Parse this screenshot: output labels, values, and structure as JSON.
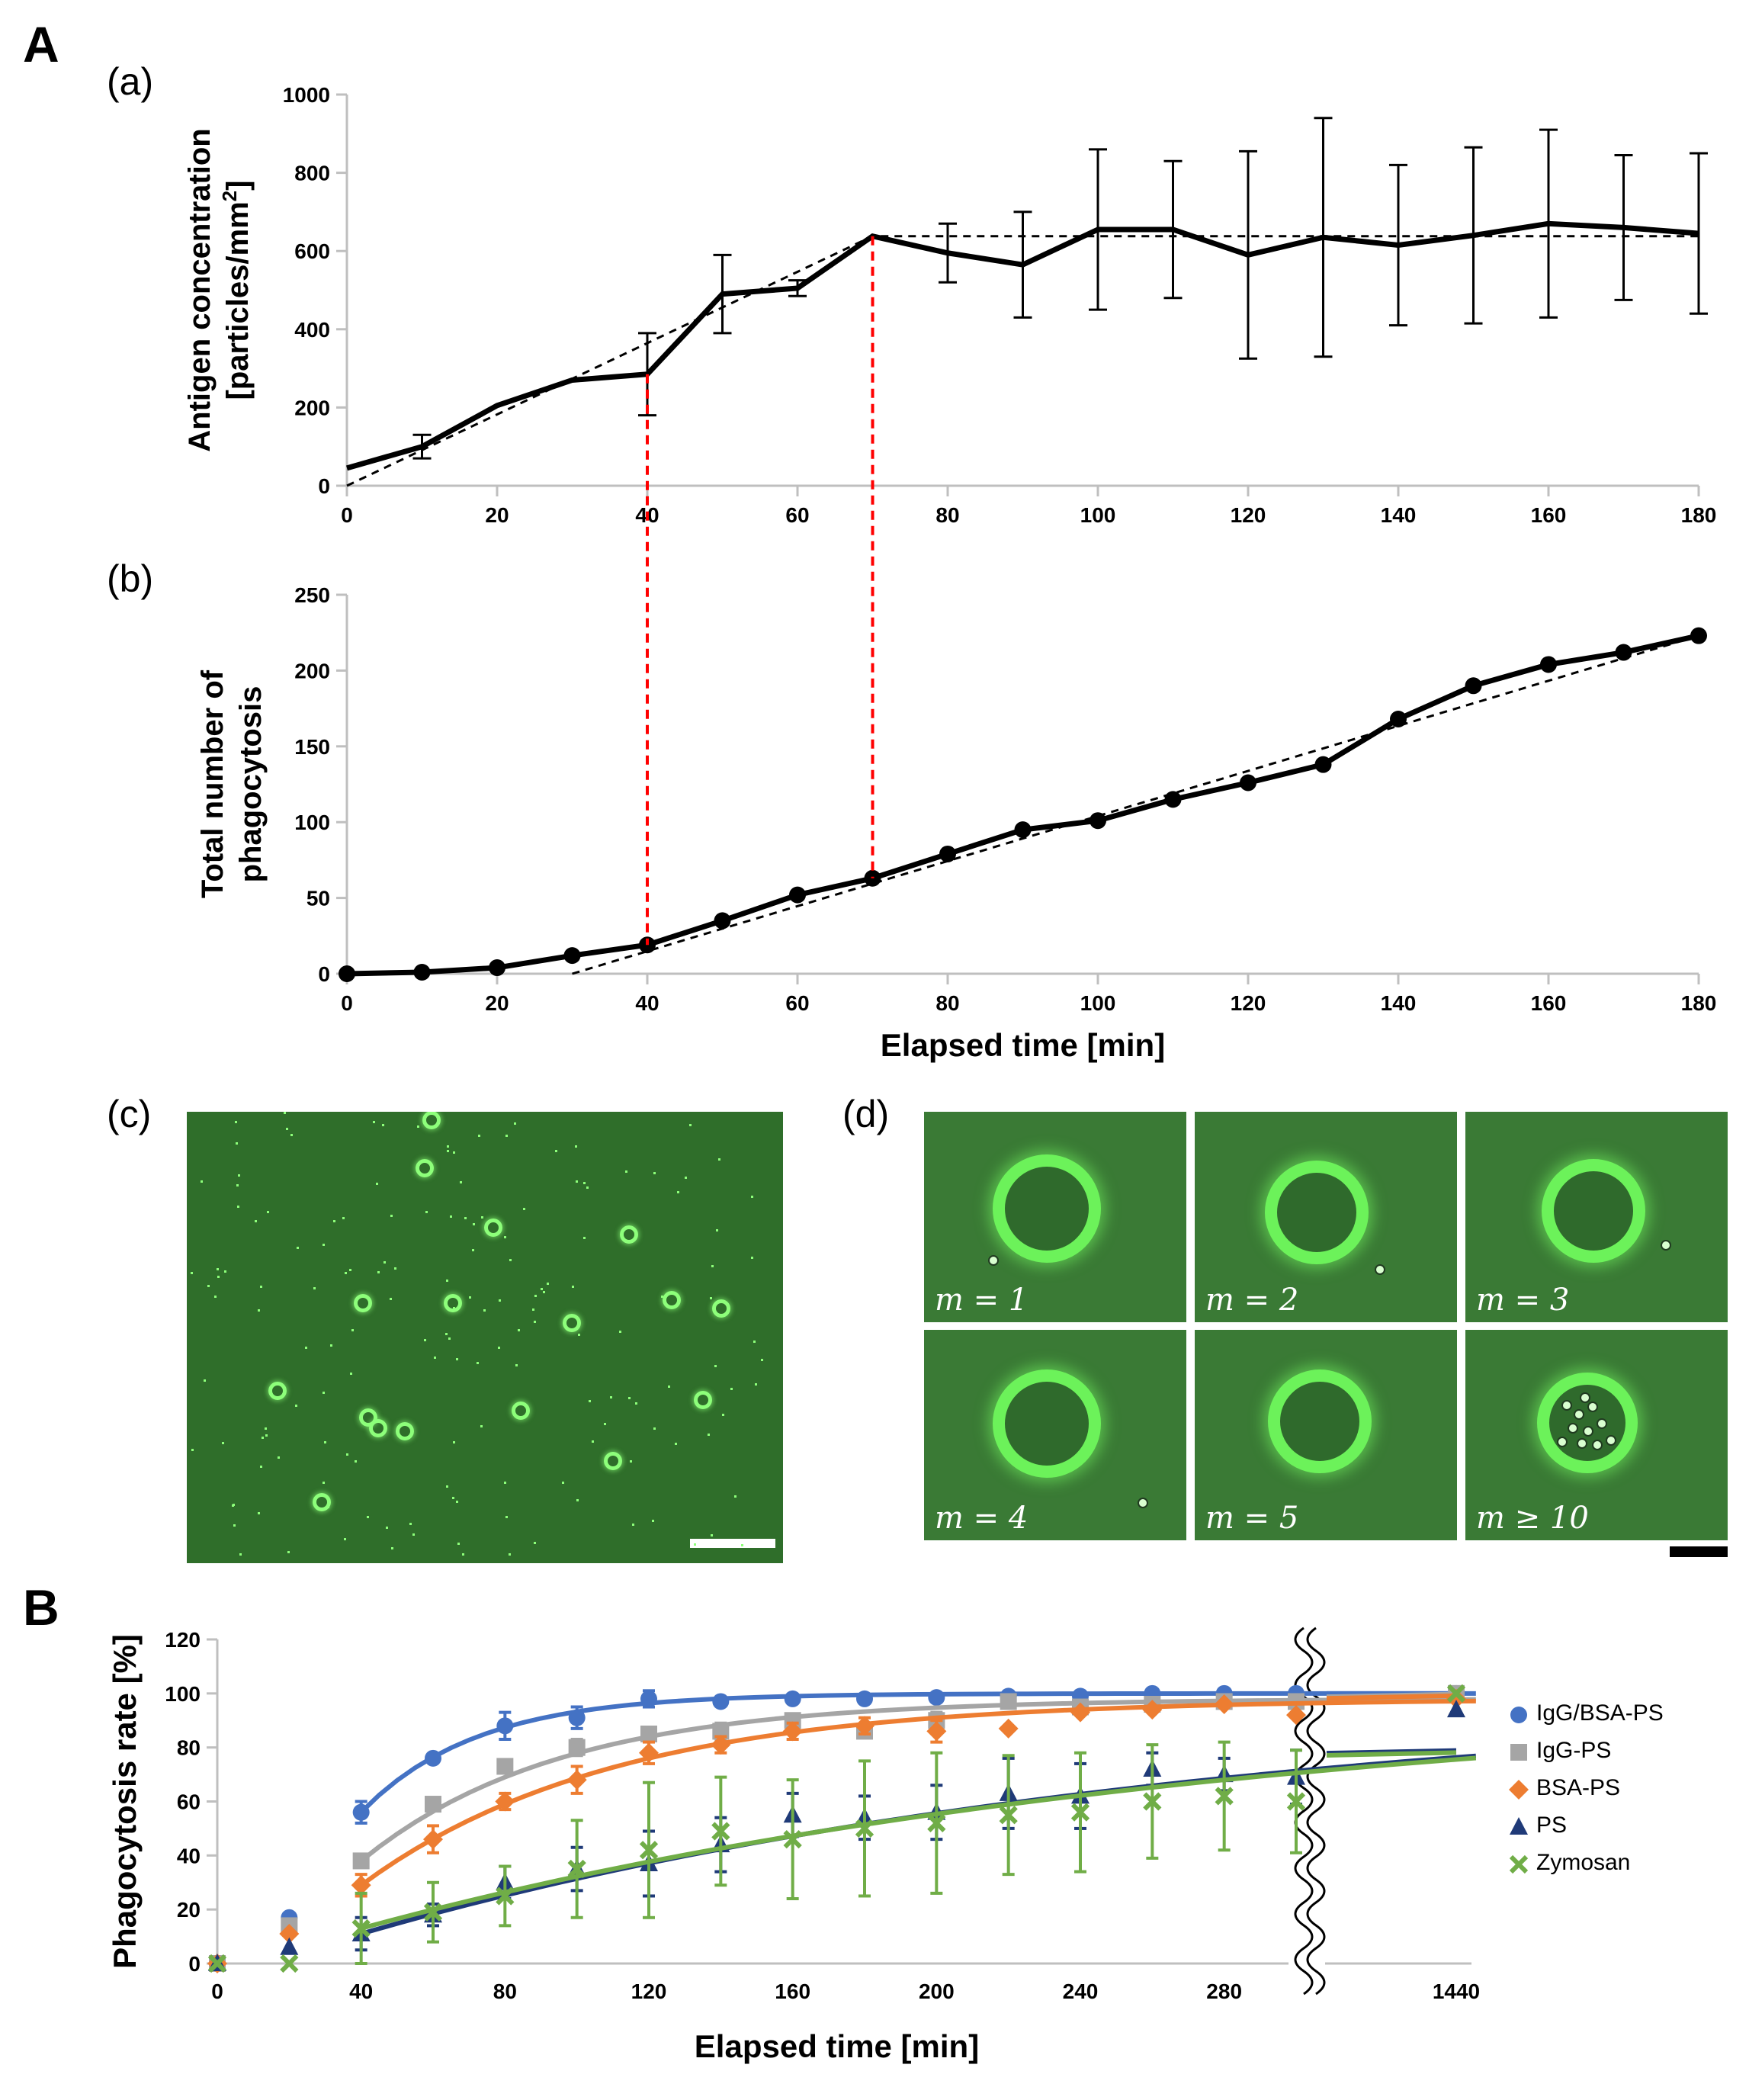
{
  "panel_labels": {
    "A": "A",
    "B": "B",
    "a": "(a)",
    "b": "(b)",
    "c": "(c)",
    "d": "(d)"
  },
  "colors": {
    "IgG/BSA-PS": "#4472c4",
    "IgG-PS": "#a5a5a5",
    "BSA-PS": "#ed7d31",
    "PS": "#1f3a78",
    "Zymosan": "#70ad47",
    "guide": "#ff0000"
  },
  "chart_data": [
    {
      "id": "a",
      "type": "line",
      "ylabel_line1": "Antigen concentration",
      "ylabel_line2": "[particles/mm",
      "ylabel_sup": "2",
      "ylabel_end": "]",
      "xlim": [
        0,
        180
      ],
      "ylim": [
        0,
        1000
      ],
      "xticks": [
        0,
        20,
        40,
        60,
        80,
        100,
        120,
        140,
        160,
        180
      ],
      "yticks": [
        0,
        200,
        400,
        600,
        800,
        1000
      ],
      "x": [
        0,
        10,
        20,
        30,
        40,
        50,
        60,
        70,
        80,
        90,
        100,
        110,
        120,
        130,
        140,
        150,
        160,
        170,
        180
      ],
      "y": [
        45,
        100,
        205,
        270,
        285,
        490,
        505,
        638,
        595,
        565,
        655,
        655,
        590,
        635,
        615,
        640,
        670,
        660,
        645
      ],
      "err": [
        0,
        30,
        0,
        0,
        105,
        100,
        20,
        0,
        75,
        135,
        205,
        175,
        265,
        305,
        205,
        225,
        240,
        185,
        205
      ],
      "fit": [
        [
          0,
          0
        ],
        [
          70,
          638
        ],
        [
          180,
          638
        ]
      ]
    },
    {
      "id": "b",
      "type": "line",
      "ylabel_line1": "Total number of",
      "ylabel_line2": "phagocytosis",
      "xlabel": "Elapsed time [min]",
      "xlim": [
        0,
        180
      ],
      "ylim": [
        0,
        250
      ],
      "xticks": [
        0,
        20,
        40,
        60,
        80,
        100,
        120,
        140,
        160,
        180
      ],
      "yticks": [
        0,
        50,
        100,
        150,
        200,
        250
      ],
      "x": [
        0,
        10,
        20,
        30,
        40,
        50,
        60,
        70,
        80,
        90,
        100,
        110,
        120,
        130,
        140,
        150,
        160,
        170,
        180
      ],
      "y": [
        0,
        1,
        4,
        12,
        19,
        35,
        52,
        63,
        79,
        95,
        101,
        115,
        126,
        138,
        168,
        190,
        204,
        212,
        223
      ],
      "fit": [
        [
          30,
          0
        ],
        [
          180,
          223
        ]
      ]
    },
    {
      "id": "B",
      "type": "scatter",
      "ylabel": "Phagocytosis rate [%]",
      "xlabel": "Elapsed time [min]",
      "ylim": [
        0,
        120
      ],
      "yticks": [
        0,
        20,
        40,
        60,
        80,
        100,
        120
      ],
      "xticks": [
        0,
        40,
        80,
        120,
        160,
        200,
        240,
        280
      ],
      "xtick_break": "1440",
      "series": [
        {
          "name": "IgG/BSA-PS",
          "marker": "circle",
          "x": [
            0,
            20,
            40,
            60,
            80,
            100,
            120,
            140,
            160,
            180,
            200,
            220,
            240,
            260,
            280,
            300,
            1440
          ],
          "y": [
            0,
            17,
            56,
            76,
            88,
            91,
            98,
            97,
            98,
            98,
            98.5,
            99,
            99,
            100,
            100,
            100,
            100
          ],
          "err": [
            0,
            0,
            4,
            0,
            5,
            4,
            3,
            0,
            0,
            0,
            0,
            0,
            0,
            0,
            0,
            0,
            0
          ],
          "fit_tau": 32,
          "fit_plateau": 100
        },
        {
          "name": "IgG-PS",
          "marker": "square",
          "x": [
            0,
            20,
            40,
            60,
            80,
            100,
            120,
            140,
            160,
            180,
            200,
            220,
            240,
            260,
            280,
            300,
            1440
          ],
          "y": [
            0,
            14,
            38,
            59,
            73,
            80,
            85,
            86,
            90,
            86,
            90,
            97,
            95,
            96,
            97,
            97,
            100
          ],
          "err": [
            0,
            0,
            0,
            0,
            0,
            3,
            0,
            3,
            0,
            2,
            3,
            0,
            0,
            0,
            0,
            0,
            0
          ],
          "fit_tau": 55,
          "fit_plateau": 98
        },
        {
          "name": "BSA-PS",
          "marker": "diamond",
          "x": [
            0,
            20,
            40,
            60,
            80,
            100,
            120,
            140,
            160,
            180,
            200,
            220,
            240,
            260,
            280,
            300,
            1440
          ],
          "y": [
            0,
            11,
            29,
            46,
            60,
            68,
            78,
            81,
            86,
            88,
            86,
            87,
            93,
            94,
            96,
            92,
            98
          ],
          "err": [
            0,
            0,
            4,
            5,
            3,
            5,
            4,
            3,
            3,
            3,
            4,
            0,
            0,
            0,
            0,
            0,
            0
          ],
          "fit_tau": 70,
          "fit_plateau": 98
        },
        {
          "name": "PS",
          "marker": "triangle",
          "x": [
            0,
            20,
            40,
            60,
            80,
            100,
            120,
            140,
            160,
            180,
            200,
            220,
            240,
            260,
            280,
            300,
            1440
          ],
          "y": [
            0,
            6,
            11,
            18,
            30,
            35,
            37,
            44,
            55,
            54,
            56,
            63,
            62,
            72,
            70,
            69,
            94
          ],
          "err": [
            0,
            0,
            6,
            4,
            6,
            8,
            12,
            10,
            8,
            8,
            10,
            13,
            12,
            6,
            6,
            10,
            0
          ],
          "fit_tau": 230,
          "fit_plateau": 100
        },
        {
          "name": "Zymosan",
          "marker": "cross",
          "x": [
            0,
            20,
            40,
            60,
            80,
            100,
            120,
            140,
            160,
            180,
            200,
            220,
            240,
            260,
            280,
            300,
            1440
          ],
          "y": [
            0,
            0,
            13,
            19,
            25,
            35,
            42,
            49,
            46,
            50,
            52,
            55,
            56,
            60,
            62,
            60,
            100
          ],
          "err": [
            0,
            0,
            13,
            11,
            11,
            18,
            25,
            20,
            22,
            25,
            26,
            22,
            22,
            21,
            20,
            19,
            0
          ],
          "fit_tau": 240,
          "fit_plateau": 100
        }
      ]
    }
  ],
  "micrographs": {
    "labels": [
      "m = 1",
      "m = 2",
      "m = 3",
      "m = 4",
      "m = 5",
      "m ≥ 10"
    ]
  }
}
